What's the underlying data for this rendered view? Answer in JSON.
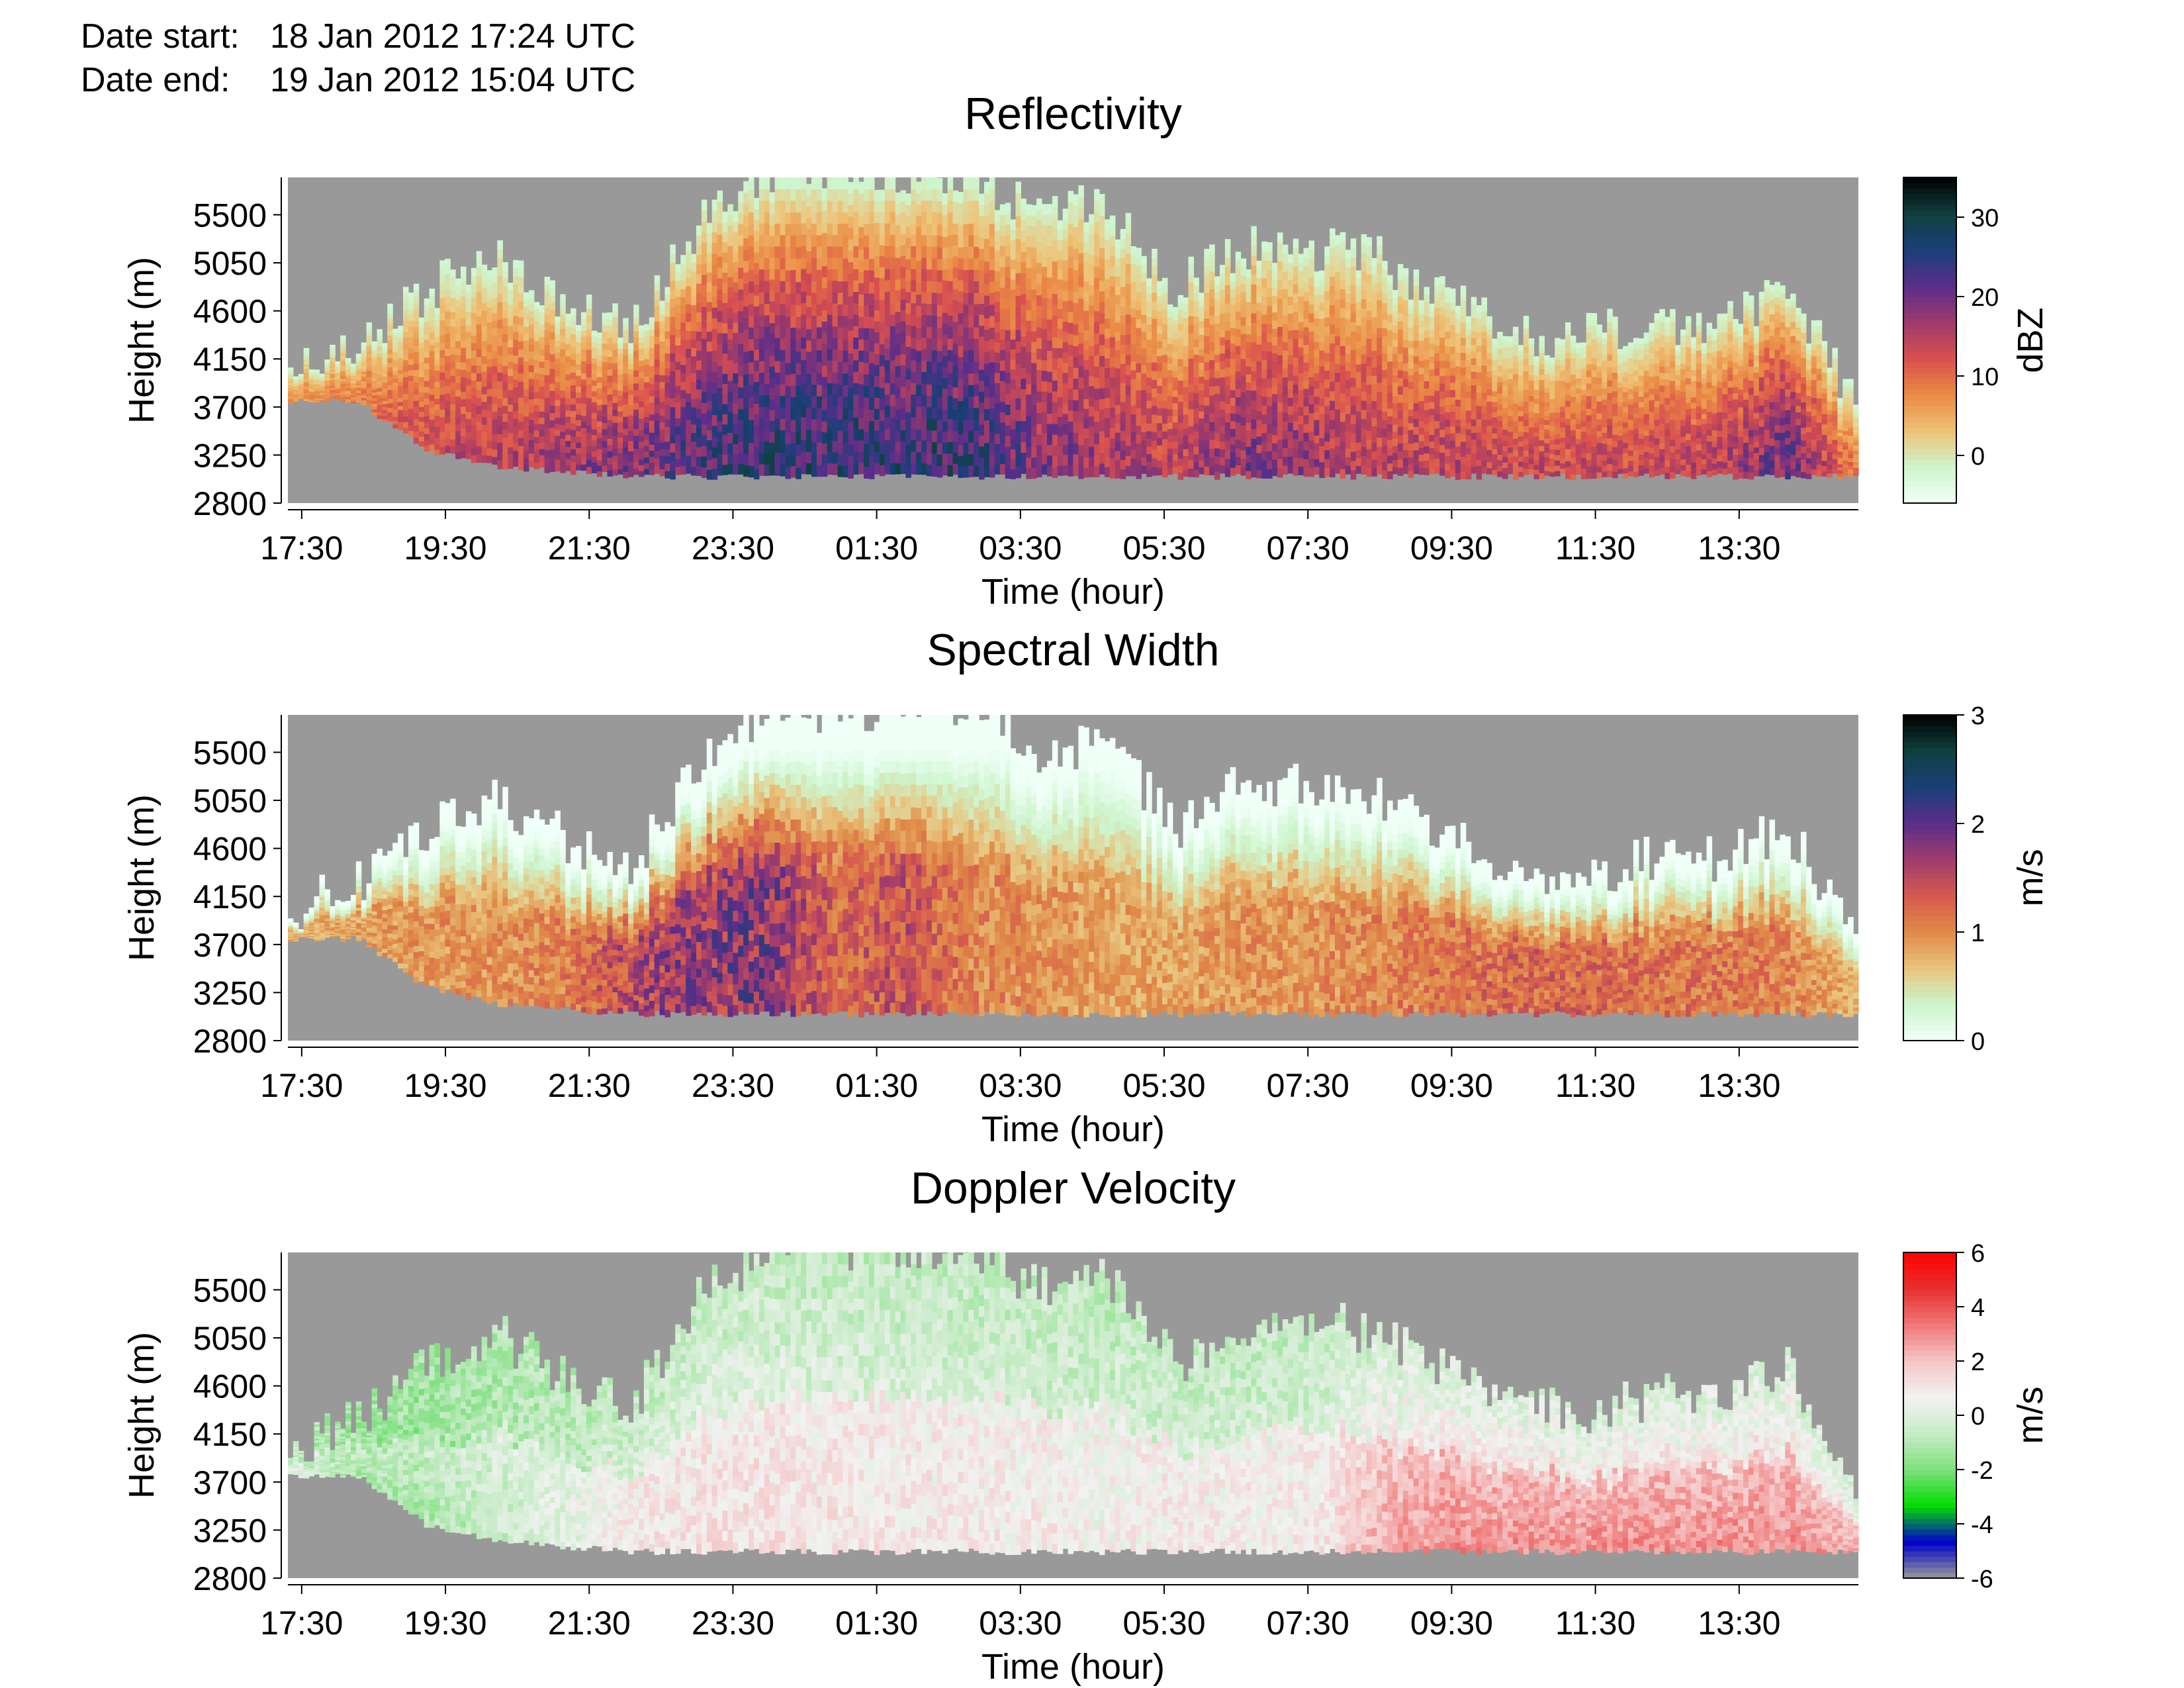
{
  "header": {
    "start_label": "Date start:",
    "start_value": "18 Jan 2012 17:24 UTC",
    "end_label": "Date end:",
    "end_value": "19 Jan 2012 15:04 UTC"
  },
  "colors": {
    "missing": "#999999",
    "reflectivity_scale": [
      "#f0fff8",
      "#cdf5cd",
      "#eec276",
      "#ea8a44",
      "#d9504f",
      "#9d3a6a",
      "#5a2e8a",
      "#1a3f78",
      "#10403e",
      "#000000"
    ],
    "width_scale": [
      "#f0fff8",
      "#cdf5cd",
      "#e8c47e",
      "#e08a48",
      "#d65a4e",
      "#a03c6c",
      "#5a2e8a",
      "#1a3f78",
      "#10403e",
      "#000000"
    ],
    "velocity_scale": [
      "#999999",
      "#0000cc",
      "#00dd00",
      "#7de07d",
      "#c7ecc7",
      "#f2f2f2",
      "#f5c6c6",
      "#f07878",
      "#e63030",
      "#ff0000"
    ]
  },
  "chart_data": [
    {
      "type": "heatmap",
      "title": "Reflectivity",
      "xlabel": "Time (hour)",
      "ylabel": "Height (m)",
      "x_ticks": [
        "17:30",
        "19:30",
        "21:30",
        "23:30",
        "01:30",
        "03:30",
        "05:30",
        "07:30",
        "09:30",
        "11:30",
        "13:30"
      ],
      "y_ticks": [
        "2800",
        "3250",
        "3700",
        "4150",
        "4600",
        "5050",
        "5500"
      ],
      "ylim": [
        2800,
        5850
      ],
      "colorbar": {
        "label": "dBZ",
        "ticks": [
          "0",
          "10",
          "20",
          "30"
        ],
        "range": [
          -6,
          35
        ]
      },
      "cloud_base_m": [
        3750,
        3760,
        3300,
        3150,
        3100,
        3050,
        3050,
        3050,
        3050,
        3050,
        3050,
        3050,
        3050,
        3050,
        3050,
        3050,
        3050,
        3050,
        3050,
        3050,
        3050,
        3050,
        3050,
        3050
      ],
      "cloud_top_m": [
        4000,
        4300,
        4800,
        5100,
        4700,
        4400,
        5400,
        5900,
        5900,
        5900,
        5900,
        5500,
        5600,
        4800,
        5200,
        5200,
        5100,
        4700,
        4400,
        4350,
        4500,
        4500,
        4800,
        3700
      ],
      "max_value_by_hour": [
        10,
        12,
        16,
        18,
        20,
        22,
        26,
        28,
        28,
        28,
        28,
        22,
        20,
        18,
        22,
        20,
        18,
        18,
        17,
        17,
        17,
        18,
        24,
        12
      ]
    },
    {
      "type": "heatmap",
      "title": "Spectral Width",
      "xlabel": "Time (hour)",
      "ylabel": "Height (m)",
      "x_ticks": [
        "17:30",
        "19:30",
        "21:30",
        "23:30",
        "01:30",
        "03:30",
        "05:30",
        "07:30",
        "09:30",
        "11:30",
        "13:30"
      ],
      "y_ticks": [
        "2800",
        "3250",
        "3700",
        "4150",
        "4600",
        "5050",
        "5500"
      ],
      "ylim": [
        2800,
        5850
      ],
      "colorbar": {
        "label": "m/s",
        "ticks": [
          "0",
          "1",
          "2",
          "3"
        ],
        "range": [
          0,
          3
        ]
      },
      "max_value_by_hour": [
        0.8,
        0.9,
        1.0,
        1.0,
        1.1,
        1.6,
        1.8,
        1.9,
        1.3,
        1.5,
        1.1,
        1.0,
        0.9,
        0.9,
        1.0,
        1.0,
        1.1,
        1.2,
        1.3,
        1.3,
        1.2,
        1.2,
        1.1,
        0.8
      ]
    },
    {
      "type": "heatmap",
      "title": "Doppler Velocity",
      "xlabel": "Time (hour)",
      "ylabel": "Height (m)",
      "x_ticks": [
        "17:30",
        "19:30",
        "21:30",
        "23:30",
        "01:30",
        "03:30",
        "05:30",
        "07:30",
        "09:30",
        "11:30",
        "13:30"
      ],
      "y_ticks": [
        "2800",
        "3250",
        "3700",
        "4150",
        "4600",
        "5050",
        "5500"
      ],
      "ylim": [
        2800,
        5850
      ],
      "colorbar": {
        "label": "m/s",
        "ticks": [
          "-6",
          "-4",
          "-2",
          "0",
          "2",
          "4",
          "6"
        ],
        "range": [
          -6,
          6
        ]
      },
      "mean_velocity_by_hour": [
        -0.5,
        -1.5,
        -1.5,
        -1.0,
        -0.5,
        0.3,
        0.5,
        0.5,
        0.4,
        0.3,
        0.3,
        0.2,
        0.0,
        0.3,
        0.2,
        0.2,
        1.5,
        2.0,
        2.0,
        2.0,
        2.0,
        2.0,
        2.0,
        1.5
      ]
    }
  ]
}
